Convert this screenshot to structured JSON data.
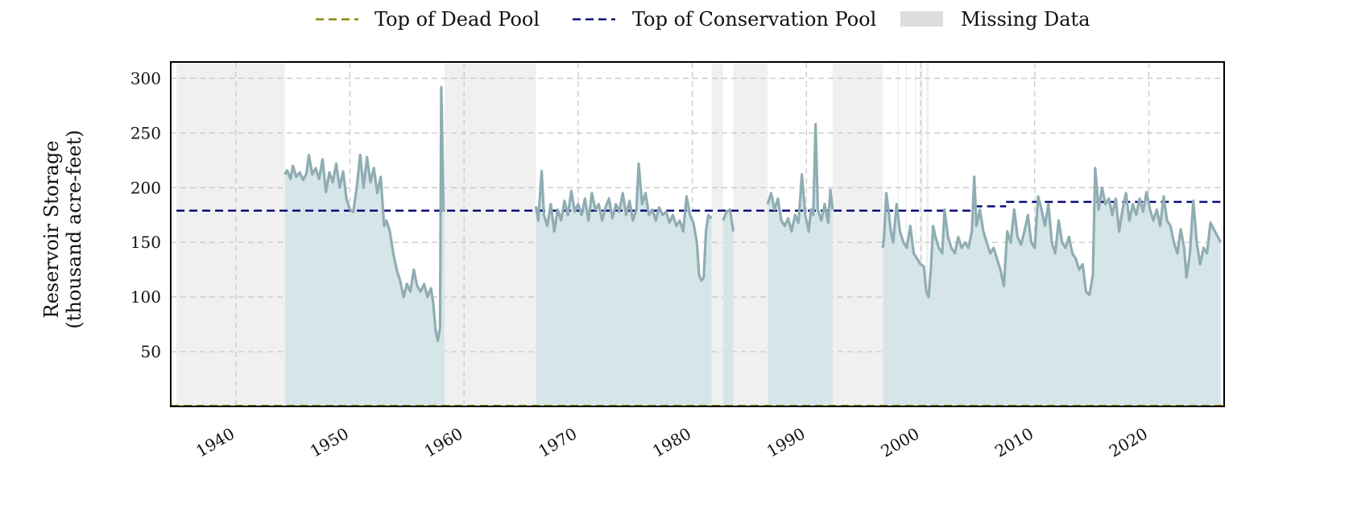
{
  "chart_data": {
    "type": "area",
    "ylabel": [
      "Reservoir Storage",
      "(thousand acre-feet)"
    ],
    "xlim": [
      1934.3,
      2026.6
    ],
    "ylim": [
      0,
      315
    ],
    "x_ticks": [
      1940,
      1950,
      1960,
      1970,
      1980,
      1990,
      2000,
      2010,
      2020
    ],
    "x_tick_labels": [
      "1940",
      "1950",
      "1960",
      "1970",
      "1980",
      "1990",
      "2000",
      "2010",
      "2020"
    ],
    "y_ticks": [
      50,
      100,
      150,
      200,
      250,
      300
    ],
    "y_tick_labels": [
      "50",
      "100",
      "150",
      "200",
      "250",
      "300"
    ],
    "grid": true,
    "legend": {
      "placement": "top-center",
      "entries": [
        {
          "label": "Top of Dead Pool",
          "style": "dashed",
          "color": "#8a8a00"
        },
        {
          "label": "Top of Conservation Pool",
          "style": "dashed",
          "color": "#0b0b7a"
        },
        {
          "label": "Missing Data",
          "style": "patch",
          "color": "#dddddd"
        }
      ]
    },
    "colors": {
      "storage_line": "#8fadb3",
      "storage_fill": "#d6e5e8",
      "missing": "#f0f0f0",
      "conservation": "#0b0b7a",
      "dead_pool": "#8a8a00",
      "grid": "#cccccc"
    },
    "dead_pool": {
      "value": 0
    },
    "conservation_pool": [
      {
        "x0": 1934.8,
        "x1": 2004.7,
        "value": 179
      },
      {
        "x0": 2004.7,
        "x1": 2007.5,
        "value": 183
      },
      {
        "x0": 2007.5,
        "x1": 2026.3,
        "value": 187
      }
    ],
    "missing_periods": [
      [
        1934.8,
        1944.3
      ],
      [
        1958.3,
        1966.3
      ],
      [
        1981.7,
        1982.7
      ],
      [
        1983.6,
        1986.6
      ],
      [
        1992.3,
        1996.7
      ],
      [
        1998.0,
        1998.1
      ],
      [
        1998.7,
        1998.8
      ],
      [
        1999.5,
        1999.6
      ],
      [
        2000.0,
        2000.2
      ],
      [
        2000.5,
        2000.7
      ]
    ],
    "series": [
      {
        "segments": [
          [
            [
              1944.3,
              212
            ],
            [
              1944.5,
              216
            ],
            [
              1944.8,
              208
            ],
            [
              1945.0,
              220
            ],
            [
              1945.3,
              210
            ],
            [
              1945.6,
              214
            ],
            [
              1945.9,
              207
            ],
            [
              1946.2,
              213
            ],
            [
              1946.4,
              230
            ],
            [
              1946.7,
              212
            ],
            [
              1947.0,
              218
            ],
            [
              1947.3,
              208
            ],
            [
              1947.6,
              226
            ],
            [
              1947.9,
              196
            ],
            [
              1948.2,
              214
            ],
            [
              1948.5,
              205
            ],
            [
              1948.8,
              222
            ],
            [
              1949.1,
              200
            ],
            [
              1949.4,
              215
            ],
            [
              1949.7,
              190
            ],
            [
              1950.0,
              180
            ],
            [
              1950.3,
              178
            ],
            [
              1950.6,
              200
            ],
            [
              1950.9,
              230
            ],
            [
              1951.2,
              200
            ],
            [
              1951.5,
              228
            ],
            [
              1951.8,
              205
            ],
            [
              1952.1,
              218
            ],
            [
              1952.4,
              195
            ],
            [
              1952.7,
              210
            ],
            [
              1953.0,
              165
            ],
            [
              1953.2,
              170
            ],
            [
              1953.5,
              160
            ],
            [
              1953.8,
              140
            ],
            [
              1954.1,
              125
            ],
            [
              1954.4,
              115
            ],
            [
              1954.7,
              100
            ],
            [
              1955.0,
              112
            ],
            [
              1955.3,
              105
            ],
            [
              1955.6,
              125
            ],
            [
              1955.9,
              110
            ],
            [
              1956.2,
              105
            ],
            [
              1956.5,
              112
            ],
            [
              1956.8,
              100
            ],
            [
              1957.1,
              108
            ],
            [
              1957.3,
              95
            ],
            [
              1957.5,
              70
            ],
            [
              1957.7,
              60
            ],
            [
              1957.9,
              72
            ],
            [
              1958.0,
              292
            ],
            [
              1958.1,
              240
            ],
            [
              1958.2,
              180
            ],
            [
              1958.3,
              178
            ]
          ],
          [
            [
              1966.3,
              183
            ],
            [
              1966.5,
              170
            ],
            [
              1966.8,
              215
            ],
            [
              1967.0,
              175
            ],
            [
              1967.3,
              165
            ],
            [
              1967.6,
              185
            ],
            [
              1967.9,
              160
            ],
            [
              1968.2,
              180
            ],
            [
              1968.5,
              170
            ],
            [
              1968.8,
              188
            ],
            [
              1969.1,
              175
            ],
            [
              1969.4,
              197
            ],
            [
              1969.7,
              178
            ],
            [
              1970.0,
              185
            ],
            [
              1970.3,
              175
            ],
            [
              1970.6,
              190
            ],
            [
              1970.9,
              170
            ],
            [
              1971.2,
              195
            ],
            [
              1971.5,
              180
            ],
            [
              1971.8,
              185
            ],
            [
              1972.1,
              170
            ],
            [
              1972.4,
              182
            ],
            [
              1972.7,
              190
            ],
            [
              1973.0,
              172
            ],
            [
              1973.3,
              185
            ],
            [
              1973.6,
              178
            ],
            [
              1973.9,
              195
            ],
            [
              1974.2,
              175
            ],
            [
              1974.5,
              188
            ],
            [
              1974.8,
              170
            ],
            [
              1975.1,
              180
            ],
            [
              1975.3,
              222
            ],
            [
              1975.6,
              185
            ],
            [
              1975.9,
              195
            ],
            [
              1976.2,
              175
            ],
            [
              1976.5,
              180
            ],
            [
              1976.8,
              170
            ],
            [
              1977.1,
              182
            ],
            [
              1977.4,
              175
            ],
            [
              1977.7,
              178
            ],
            [
              1978.0,
              168
            ],
            [
              1978.3,
              175
            ],
            [
              1978.6,
              165
            ],
            [
              1978.9,
              170
            ],
            [
              1979.2,
              160
            ],
            [
              1979.5,
              192
            ],
            [
              1979.8,
              175
            ],
            [
              1980.1,
              168
            ],
            [
              1980.4,
              150
            ],
            [
              1980.6,
              120
            ],
            [
              1980.8,
              115
            ],
            [
              1981.0,
              118
            ],
            [
              1981.2,
              160
            ],
            [
              1981.4,
              175
            ],
            [
              1981.7,
              172
            ]
          ],
          [
            [
              1982.7,
              170
            ],
            [
              1983.0,
              178
            ],
            [
              1983.3,
              180
            ],
            [
              1983.6,
              160
            ]
          ],
          [
            [
              1986.6,
              185
            ],
            [
              1986.9,
              195
            ],
            [
              1987.2,
              180
            ],
            [
              1987.5,
              190
            ],
            [
              1987.8,
              170
            ],
            [
              1988.1,
              165
            ],
            [
              1988.4,
              172
            ],
            [
              1988.7,
              160
            ],
            [
              1989.0,
              175
            ],
            [
              1989.3,
              168
            ],
            [
              1989.6,
              212
            ],
            [
              1989.9,
              175
            ],
            [
              1990.2,
              160
            ],
            [
              1990.4,
              180
            ],
            [
              1990.6,
              175
            ],
            [
              1990.8,
              258
            ],
            [
              1991.0,
              180
            ],
            [
              1991.3,
              170
            ],
            [
              1991.6,
              185
            ],
            [
              1991.9,
              168
            ],
            [
              1992.1,
              198
            ],
            [
              1992.3,
              180
            ]
          ],
          [
            [
              1996.7,
              145
            ],
            [
              1996.8,
              155
            ],
            [
              1997.0,
              195
            ],
            [
              1997.2,
              178
            ],
            [
              1997.4,
              160
            ],
            [
              1997.6,
              150
            ],
            [
              1997.9,
              185
            ],
            [
              1998.2,
              160
            ],
            [
              1998.5,
              150
            ],
            [
              1998.8,
              145
            ],
            [
              1999.1,
              165
            ],
            [
              1999.4,
              140
            ],
            [
              1999.7,
              135
            ],
            [
              2000.0,
              130
            ],
            [
              2000.3,
              128
            ],
            [
              2000.5,
              105
            ],
            [
              2000.7,
              100
            ],
            [
              2000.9,
              125
            ],
            [
              2001.1,
              165
            ],
            [
              2001.3,
              155
            ],
            [
              2001.6,
              145
            ],
            [
              2001.9,
              140
            ],
            [
              2002.1,
              180
            ],
            [
              2002.4,
              155
            ],
            [
              2002.7,
              145
            ],
            [
              2003.0,
              140
            ],
            [
              2003.3,
              155
            ],
            [
              2003.6,
              145
            ],
            [
              2003.9,
              150
            ],
            [
              2004.2,
              145
            ],
            [
              2004.5,
              160
            ],
            [
              2004.7,
              210
            ],
            [
              2004.9,
              165
            ],
            [
              2005.2,
              180
            ],
            [
              2005.5,
              160
            ],
            [
              2005.8,
              150
            ],
            [
              2006.1,
              140
            ],
            [
              2006.4,
              145
            ],
            [
              2006.7,
              135
            ],
            [
              2007.0,
              125
            ],
            [
              2007.3,
              110
            ],
            [
              2007.6,
              160
            ],
            [
              2007.9,
              150
            ],
            [
              2008.2,
              180
            ],
            [
              2008.5,
              155
            ],
            [
              2008.8,
              148
            ],
            [
              2009.1,
              160
            ],
            [
              2009.4,
              175
            ],
            [
              2009.7,
              150
            ],
            [
              2010.0,
              145
            ],
            [
              2010.3,
              192
            ],
            [
              2010.6,
              180
            ],
            [
              2010.9,
              165
            ],
            [
              2011.2,
              185
            ],
            [
              2011.5,
              150
            ],
            [
              2011.8,
              140
            ],
            [
              2012.1,
              170
            ],
            [
              2012.4,
              150
            ],
            [
              2012.7,
              145
            ],
            [
              2013.0,
              155
            ],
            [
              2013.3,
              140
            ],
            [
              2013.6,
              135
            ],
            [
              2013.9,
              125
            ],
            [
              2014.2,
              130
            ],
            [
              2014.5,
              105
            ],
            [
              2014.8,
              102
            ],
            [
              2015.1,
              120
            ],
            [
              2015.3,
              218
            ],
            [
              2015.6,
              180
            ],
            [
              2015.9,
              200
            ],
            [
              2016.2,
              185
            ],
            [
              2016.5,
              190
            ],
            [
              2016.8,
              175
            ],
            [
              2017.1,
              190
            ],
            [
              2017.4,
              160
            ],
            [
              2017.7,
              180
            ],
            [
              2018.0,
              195
            ],
            [
              2018.3,
              170
            ],
            [
              2018.6,
              185
            ],
            [
              2018.9,
              175
            ],
            [
              2019.2,
              190
            ],
            [
              2019.5,
              178
            ],
            [
              2019.8,
              196
            ],
            [
              2020.1,
              180
            ],
            [
              2020.4,
              170
            ],
            [
              2020.7,
              180
            ],
            [
              2021.0,
              165
            ],
            [
              2021.3,
              192
            ],
            [
              2021.6,
              170
            ],
            [
              2021.9,
              165
            ],
            [
              2022.2,
              150
            ],
            [
              2022.5,
              140
            ],
            [
              2022.8,
              162
            ],
            [
              2023.1,
              145
            ],
            [
              2023.3,
              118
            ],
            [
              2023.6,
              140
            ],
            [
              2023.9,
              188
            ],
            [
              2024.2,
              150
            ],
            [
              2024.5,
              130
            ],
            [
              2024.8,
              145
            ],
            [
              2025.1,
              140
            ],
            [
              2025.4,
              168
            ],
            [
              2026.3,
              150
            ]
          ]
        ]
      }
    ]
  }
}
